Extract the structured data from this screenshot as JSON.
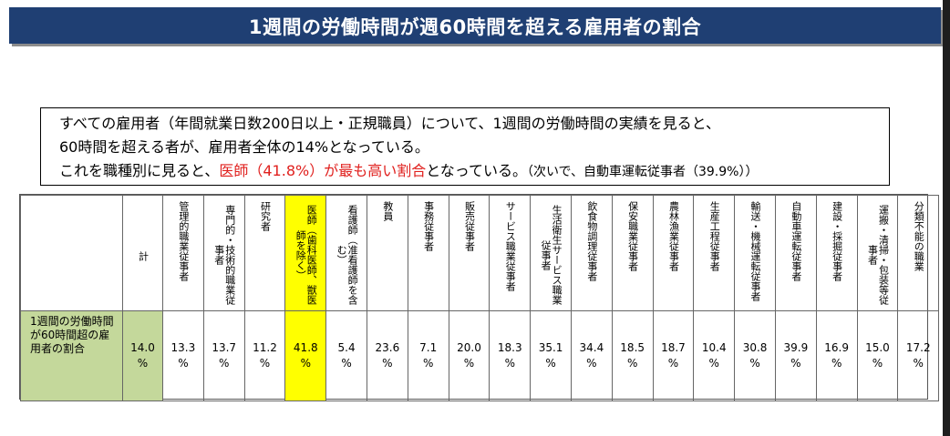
{
  "title": "1週間の労働時間が週60時間を超える雇用者の割合",
  "summary": {
    "line1": "すべての雇用者（年間就業日数200日以上・正規職員）について、1週間の労働時間の実績を見ると、",
    "line2": "60時間を超える者が、雇用者全体の14%となっている。",
    "line3_pre": "これを職種別に見ると、",
    "line3_red": "医師（41.8%）が最も高い割合",
    "line3_post": "となっている。",
    "line3_note": "（次いで、自動車運転従事者（39.9%））"
  },
  "table": {
    "row_label": "1週間の労働時間が60時間超の雇用者の割合",
    "total": {
      "header": "計",
      "value": "14.0",
      "unit": "%"
    },
    "columns": [
      {
        "header": "管理的職業従事者",
        "value": "13.3",
        "unit": "%"
      },
      {
        "header": "専門的・技術的職業従事者",
        "value": "13.7",
        "unit": "%"
      },
      {
        "header": "研究者",
        "value": "11.2",
        "unit": "%"
      },
      {
        "header": "医師（歯科医師、獣医師を除く）",
        "value": "41.8",
        "unit": "%"
      },
      {
        "header": "看護師（准看護師を含む）",
        "value": "5.4",
        "unit": "%"
      },
      {
        "header": "教員",
        "value": "23.6",
        "unit": "%"
      },
      {
        "header": "事務従事者",
        "value": "7.1",
        "unit": "%"
      },
      {
        "header": "販売従事者",
        "value": "20.0",
        "unit": "%"
      },
      {
        "header": "サービス職業従事者",
        "value": "18.3",
        "unit": "%"
      },
      {
        "header": "生活衛生サービス職業従事者",
        "value": "35.1",
        "unit": "%"
      },
      {
        "header": "飲食物調理従事者",
        "value": "34.4",
        "unit": "%"
      },
      {
        "header": "保安職業従事者",
        "value": "18.5",
        "unit": "%"
      },
      {
        "header": "農林漁業従事者",
        "value": "18.7",
        "unit": "%"
      },
      {
        "header": "生産工程従事者",
        "value": "10.4",
        "unit": "%"
      },
      {
        "header": "輸送・機械運転従事者",
        "value": "30.8",
        "unit": "%"
      },
      {
        "header": "自動車運転従事者",
        "value": "39.9",
        "unit": "%"
      },
      {
        "header": "建設・採掘従事者",
        "value": "16.9",
        "unit": "%"
      },
      {
        "header": "運搬・清掃・包装等従事者",
        "value": "15.0",
        "unit": "%"
      },
      {
        "header": "分類不能の職業",
        "value": "17.2",
        "unit": "%"
      }
    ]
  },
  "colors": {
    "title_bg": "#1f3f73",
    "highlight": "#ffff00",
    "row_label_bg": "#c4d89b",
    "emphasis_red": "#e0201e"
  }
}
